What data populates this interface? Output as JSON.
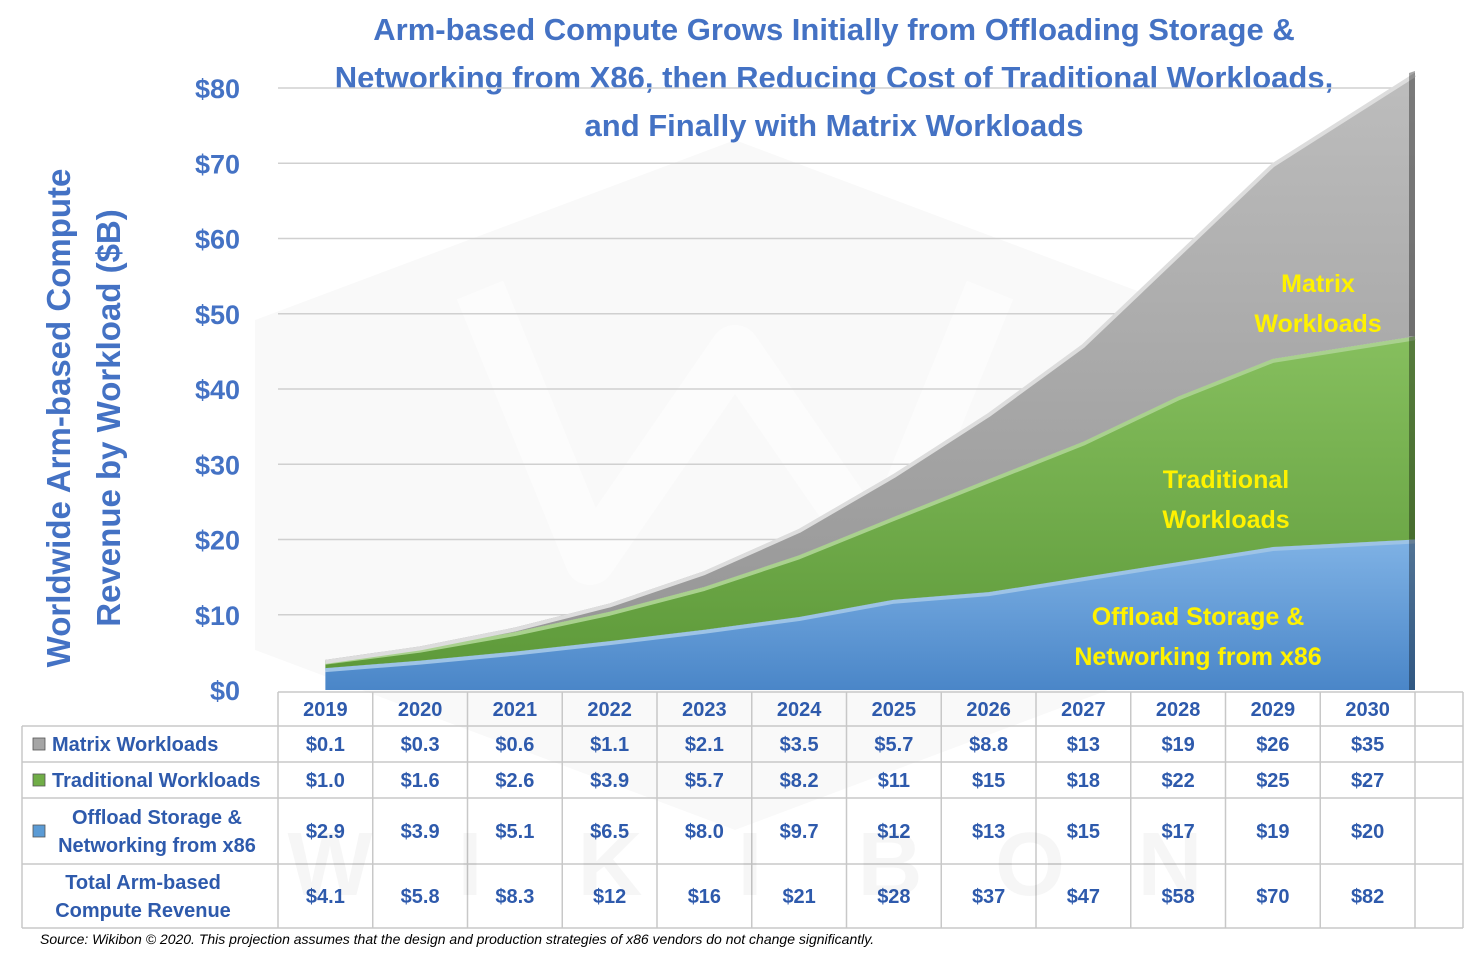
{
  "chart_data": {
    "type": "area",
    "stacked": true,
    "title_lines": [
      "Arm-based Compute Grows Initially from Offloading Storage &",
      "Networking from X86, then Reducing Cost of Traditional Workloads,",
      "and Finally with Matrix Workloads"
    ],
    "ylabel_lines": [
      "Worldwide Arm-based Compute",
      "Revenue by Workload  ($B)"
    ],
    "ylim": [
      0,
      80
    ],
    "yticks": [
      0,
      10,
      20,
      30,
      40,
      50,
      60,
      70,
      80
    ],
    "ytick_labels": [
      "$0",
      "$10",
      "$20",
      "$30",
      "$40",
      "$50",
      "$60",
      "$70",
      "$80"
    ],
    "grid": true,
    "categories": [
      "2019",
      "2020",
      "2021",
      "2022",
      "2023",
      "2024",
      "2025",
      "2026",
      "2027",
      "2028",
      "2029",
      "2030"
    ],
    "series": [
      {
        "name": "Offload Storage & Networking from x86",
        "label_lines": [
          "Offload Storage &",
          "Networking from x86"
        ],
        "area_label_lines": [
          "Offload Storage &",
          "Networking from x86"
        ],
        "color": "#5B9BD5",
        "edge_color": "#9DC3E6",
        "values": [
          2.9,
          3.9,
          5.1,
          6.5,
          8.0,
          9.7,
          12,
          13,
          15,
          17,
          19,
          20
        ],
        "display": [
          "$2.9",
          "$3.9",
          "$5.1",
          "$6.5",
          "$8.0",
          "$9.7",
          "$12",
          "$13",
          "$15",
          "$17",
          "$19",
          "$20"
        ]
      },
      {
        "name": "Traditional Workloads",
        "label_lines": [
          "Traditional Workloads"
        ],
        "area_label_lines": [
          "Traditional",
          "Workloads"
        ],
        "color": "#70AD47",
        "edge_color": "#A9D18E",
        "values": [
          1.0,
          1.6,
          2.6,
          3.9,
          5.7,
          8.2,
          11,
          15,
          18,
          22,
          25,
          27
        ],
        "display": [
          "$1.0",
          "$1.6",
          "$2.6",
          "$3.9",
          "$5.7",
          "$8.2",
          "$11",
          "$15",
          "$18",
          "$22",
          "$25",
          "$27"
        ]
      },
      {
        "name": "Matrix Workloads",
        "label_lines": [
          "Matrix Workloads"
        ],
        "area_label_lines": [
          "Matrix",
          "Workloads"
        ],
        "color": "#A5A5A5",
        "edge_color": "#DDDDDD",
        "values": [
          0.1,
          0.3,
          0.6,
          1.1,
          2.1,
          3.5,
          5.7,
          8.8,
          13,
          19,
          26,
          35
        ],
        "display": [
          "$0.1",
          "$0.3",
          "$0.6",
          "$1.1",
          "$2.1",
          "$3.5",
          "$5.7",
          "$8.8",
          "$13",
          "$19",
          "$26",
          "$35"
        ]
      }
    ],
    "total": {
      "label_lines": [
        "Total Arm-based",
        "Compute Revenue"
      ],
      "values": [
        4.1,
        5.8,
        8.3,
        12,
        16,
        21,
        28,
        37,
        47,
        58,
        70,
        82
      ],
      "display": [
        "$4.1",
        "$5.8",
        "$8.3",
        "$12",
        "$16",
        "$21",
        "$28",
        "$37",
        "$47",
        "$58",
        "$70",
        "$82"
      ]
    },
    "source": "Source: Wikibon © 2020. This projection assumes that the design and production strategies of x86 vendors do not change significantly.",
    "watermark_letters": [
      "W",
      "I",
      "K",
      "I",
      "B",
      "O",
      "N"
    ]
  }
}
